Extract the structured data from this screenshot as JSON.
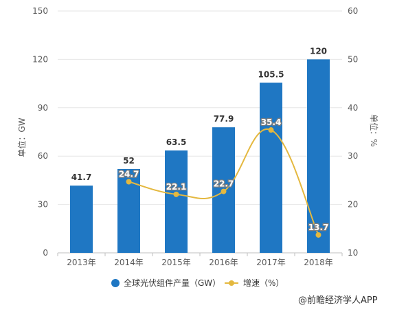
{
  "chart_data": {
    "type": "bar",
    "categories": [
      "2013年",
      "2014年",
      "2015年",
      "2016年",
      "2017年",
      "2018年"
    ],
    "series": [
      {
        "name": "全球光伏组件产量（GW）",
        "type": "bar",
        "axis": "left",
        "values": [
          41.7,
          52,
          63.5,
          77.9,
          105.5,
          120
        ],
        "color": "#1f77c3"
      },
      {
        "name": "增速（%）",
        "type": "line",
        "axis": "right",
        "values": [
          null,
          24.7,
          22.1,
          22.7,
          35.4,
          13.7
        ],
        "color": "#e4b83f"
      }
    ],
    "ylabel": "单位：GW",
    "y2label": "单位：%",
    "ylim": [
      0,
      150
    ],
    "y2lim": [
      10,
      60
    ],
    "yticks": [
      0,
      30,
      60,
      90,
      120,
      150
    ],
    "y2ticks": [
      10,
      20,
      30,
      40,
      50,
      60
    ],
    "grid": true,
    "legend": "bottom"
  },
  "credit": "@前瞻经济学人APP"
}
